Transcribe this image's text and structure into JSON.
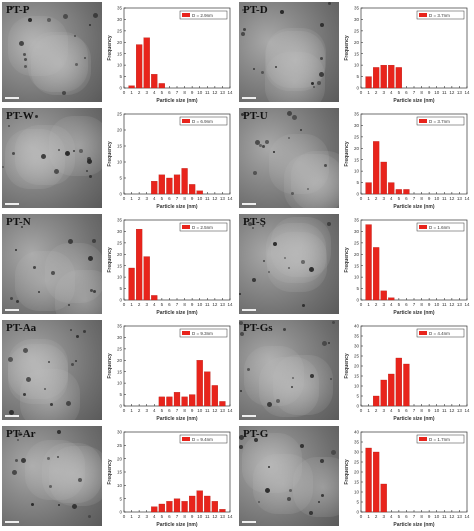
{
  "chart_data": [
    {
      "type": "bar",
      "sample": "PT-P",
      "legend": "D = 2.9nm",
      "ylabel": "Frequency",
      "xlabel": "Particle size (nm)",
      "xlim": [
        0,
        14
      ],
      "ylim": [
        0,
        35
      ],
      "x": [
        1,
        2,
        3,
        4,
        5,
        6
      ],
      "values": [
        1,
        19,
        22,
        6,
        2,
        0
      ]
    },
    {
      "type": "bar",
      "sample": "PT-D",
      "legend": "D = 3.7nm",
      "ylabel": "Frequency",
      "xlabel": "Particle size (nm)",
      "xlim": [
        0,
        14
      ],
      "ylim": [
        0,
        35
      ],
      "x": [
        1,
        2,
        3,
        4,
        5
      ],
      "values": [
        5,
        9,
        10,
        10,
        9
      ]
    },
    {
      "type": "bar",
      "sample": "PT-W",
      "legend": "D = 6.9nm",
      "ylabel": "Frequency",
      "xlabel": "Particle size (nm)",
      "xlim": [
        0,
        14
      ],
      "ylim": [
        0,
        25
      ],
      "x": [
        4,
        5,
        6,
        7,
        8,
        9,
        10
      ],
      "values": [
        4,
        6,
        5,
        6,
        8,
        3,
        1
      ]
    },
    {
      "type": "bar",
      "sample": "PT-U",
      "legend": "D = 3.7nm",
      "ylabel": "Frequency",
      "xlabel": "Particle size (nm)",
      "xlim": [
        0,
        14
      ],
      "ylim": [
        0,
        35
      ],
      "x": [
        1,
        2,
        3,
        4,
        5,
        6
      ],
      "values": [
        5,
        23,
        14,
        5,
        2,
        2
      ]
    },
    {
      "type": "bar",
      "sample": "PT-N",
      "legend": "D = 2.5nm",
      "ylabel": "Frequency",
      "xlabel": "Particle size (nm)",
      "xlim": [
        0,
        14
      ],
      "ylim": [
        0,
        35
      ],
      "x": [
        1,
        2,
        3,
        4,
        5
      ],
      "values": [
        14,
        31,
        19,
        2,
        0
      ]
    },
    {
      "type": "bar",
      "sample": "PT-S",
      "legend": "D = 1.6nm",
      "ylabel": "Frequency",
      "xlabel": "Particle size (nm)",
      "xlim": [
        0,
        14
      ],
      "ylim": [
        0,
        35
      ],
      "x": [
        1,
        2,
        3,
        4,
        5
      ],
      "values": [
        33,
        23,
        4,
        1,
        0
      ]
    },
    {
      "type": "bar",
      "sample": "PT-Aa",
      "legend": "D = 9.3nm",
      "ylabel": "Frequency",
      "xlabel": "Particle size (nm)",
      "xlim": [
        0,
        14
      ],
      "ylim": [
        0,
        35
      ],
      "x": [
        5,
        6,
        7,
        8,
        9,
        10,
        11,
        12,
        13
      ],
      "values": [
        4,
        4,
        6,
        4,
        5,
        20,
        15,
        9,
        2
      ]
    },
    {
      "type": "bar",
      "sample": "PT-Gs",
      "legend": "D = 4.4nm",
      "ylabel": "Frequency",
      "xlabel": "Particle size (nm)",
      "xlim": [
        0,
        14
      ],
      "ylim": [
        0,
        40
      ],
      "x": [
        2,
        3,
        4,
        5,
        6,
        7
      ],
      "values": [
        5,
        13,
        16,
        24,
        21,
        0
      ]
    },
    {
      "type": "bar",
      "sample": "PT-Ar",
      "legend": "D = 9.4nm",
      "ylabel": "Frequency",
      "xlabel": "Particle size (nm)",
      "xlim": [
        0,
        14
      ],
      "ylim": [
        0,
        30
      ],
      "x": [
        4,
        5,
        6,
        7,
        8,
        9,
        10,
        11,
        12,
        13
      ],
      "values": [
        2,
        3,
        4,
        5,
        4,
        6,
        8,
        6,
        4,
        1
      ]
    },
    {
      "type": "bar",
      "sample": "PT-G",
      "legend": "D = 1.7nm",
      "ylabel": "Frequency",
      "xlabel": "Particle size (nm)",
      "xlim": [
        0,
        14
      ],
      "ylim": [
        0,
        40
      ],
      "x": [
        1,
        2,
        3,
        4,
        5
      ],
      "values": [
        32,
        30,
        14,
        0,
        0
      ]
    }
  ],
  "style": {
    "bar_color": "#e8241c",
    "axis_color": "#333333",
    "label_color": "#111111"
  }
}
